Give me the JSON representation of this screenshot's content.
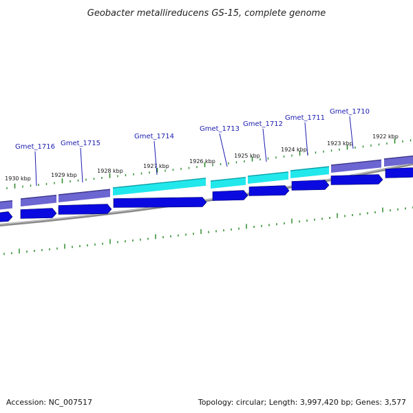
{
  "title": "Geobacter metallireducens GS-15, complete genome",
  "footer": {
    "accession": "Accession: NC_007517",
    "summary": "Topology: circular; Length: 3,997,420 bp; Genes: 3,577"
  },
  "colors": {
    "backbone": "#8a8a8a",
    "cds_arrow": "#0a0ae0",
    "gene_purple": "#6c66d2",
    "gene_cyan": "#22e8ec",
    "tick": "#2a8a2a",
    "label": "#1a1ab0"
  },
  "scale": {
    "labels": [
      "1930 kbp",
      "1929 kbp",
      "1928 kbp",
      "1927 kbp",
      "1926 kbp",
      "1925 kbp",
      "1924 kbp",
      "1923 kbp",
      "1922 kbp"
    ]
  },
  "genes": [
    {
      "name": "Gmet_1716",
      "color": "purple"
    },
    {
      "name": "Gmet_1715",
      "color": "purple"
    },
    {
      "name": "Gmet_1714",
      "color": "cyan"
    },
    {
      "name": "Gmet_1713",
      "color": "cyan"
    },
    {
      "name": "Gmet_1712",
      "color": "cyan"
    },
    {
      "name": "Gmet_1711",
      "color": "cyan"
    },
    {
      "name": "Gmet_1710",
      "color": "purple"
    }
  ]
}
